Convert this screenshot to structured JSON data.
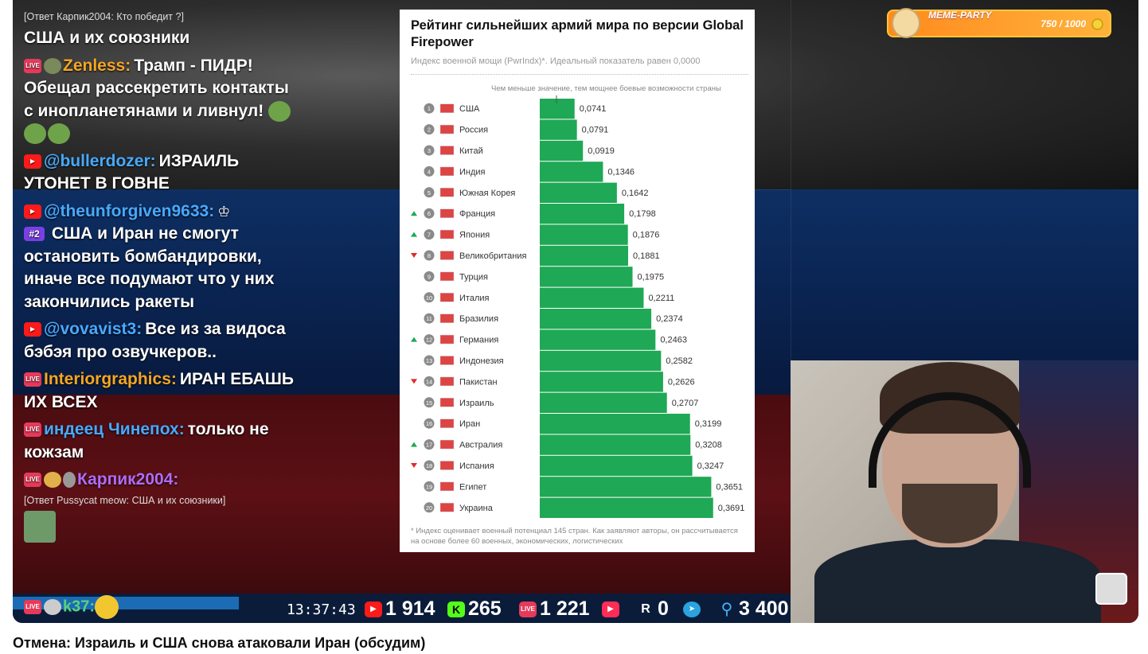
{
  "chat": {
    "reply_top": "[Ответ Карпик2004: Кто победит ?]",
    "msg0_text": "США и их союзники",
    "messages": [
      {
        "user": "Zenless:",
        "text": "Трамп - ПИДР! Обещал рассекретить контакты с инопланетянами и ливнул!",
        "user_color": "#f5a623"
      },
      {
        "user": "@bullerdozer:",
        "text": "ИЗРАИЛЬ УТОНЕТ В ГОВНЕ",
        "user_color": "#48a9ff"
      },
      {
        "user": "@theunforgiven9633:",
        "badge": "#2",
        "text": "США и Иран не смогут остановить бомбандировки, иначе все подумают что у них закончились ракеты",
        "user_color": "#48a9ff"
      },
      {
        "user": "@vovavist3:",
        "text": "Все из за видоса бэбэя про озвучкеров..",
        "user_color": "#48a9ff"
      },
      {
        "user": "Interiorgraphics:",
        "text": "ИРАН ЕБАШЬ ИХ ВСЕХ",
        "user_color": "#f5a623"
      },
      {
        "user": "индеец Чинепох:",
        "text": "только не кожзам",
        "user_color": "#48a9ff"
      },
      {
        "user": "Карпик2004:",
        "text": "",
        "user_color": "#b06cf5"
      }
    ],
    "reply_bottom": "[Ответ Pussycat meow: США и их союзники]",
    "last_user": "k37:"
  },
  "chart": {
    "title": "Рейтинг сильнейших армий мира по версии Global Firepower",
    "subtitle": "Индекс военной мощи (PwrIndx)*. Идеальный показатель равен 0,0000",
    "note": "Чем меньше значение, тем мощнее боевые возможности страны",
    "footnote": "* Индекс оценивает военный потенциал 145 стран. Как заявляют авторы, он рассчитывается на основе более 60 военных, экономических, логистических",
    "bar_color": "#1fa855"
  },
  "chart_data": {
    "type": "bar",
    "orientation": "horizontal",
    "categories": [
      "США",
      "Россия",
      "Китай",
      "Индия",
      "Южная Корея",
      "Франция",
      "Япония",
      "Великобритания",
      "Турция",
      "Италия",
      "Бразилия",
      "Германия",
      "Индонезия",
      "Пакистан",
      "Израиль",
      "Иран",
      "Австралия",
      "Испания",
      "Египет",
      "Украина"
    ],
    "ranks": [
      "1",
      "2",
      "3",
      "4",
      "5",
      "6",
      "7",
      "8",
      "9",
      "10",
      "11",
      "12",
      "13",
      "14",
      "15",
      "16",
      "17",
      "18",
      "19",
      "20"
    ],
    "values": [
      0.0741,
      0.0791,
      0.0919,
      0.1346,
      0.1642,
      0.1798,
      0.1876,
      0.1881,
      0.1975,
      0.2211,
      0.2374,
      0.2463,
      0.2582,
      0.2626,
      0.2707,
      0.3199,
      0.3208,
      0.3247,
      0.3651,
      0.3691
    ],
    "labels": [
      "0,0741",
      "0,0791",
      "0,0919",
      "0,1346",
      "0,1642",
      "0,1798",
      "0,1876",
      "0,1881",
      "0,1975",
      "0,2211",
      "0,2374",
      "0,2463",
      "0,2582",
      "0,2626",
      "0,2707",
      "0,3199",
      "0,3208",
      "0,3247",
      "0,3651",
      "0,3691"
    ],
    "trend": [
      "",
      "",
      "",
      "",
      "",
      "up",
      "up",
      "down",
      "",
      "",
      "",
      "up",
      "",
      "down",
      "",
      "",
      "up",
      "down",
      "",
      ""
    ],
    "title": "Рейтинг сильнейших армий мира по версии Global Firepower",
    "xlabel": "",
    "ylabel": ""
  },
  "meme": {
    "name": "MEME-PARTY",
    "value": "750 / 1000"
  },
  "bar": {
    "time": "13:37:43",
    "youtube": "1 914",
    "kick": "265",
    "vk_live": "1 221",
    "rutube": "0",
    "viewers": "3 400"
  },
  "video_title": "Отмена: Израиль и США снова атаковали Иран (обсудим)"
}
